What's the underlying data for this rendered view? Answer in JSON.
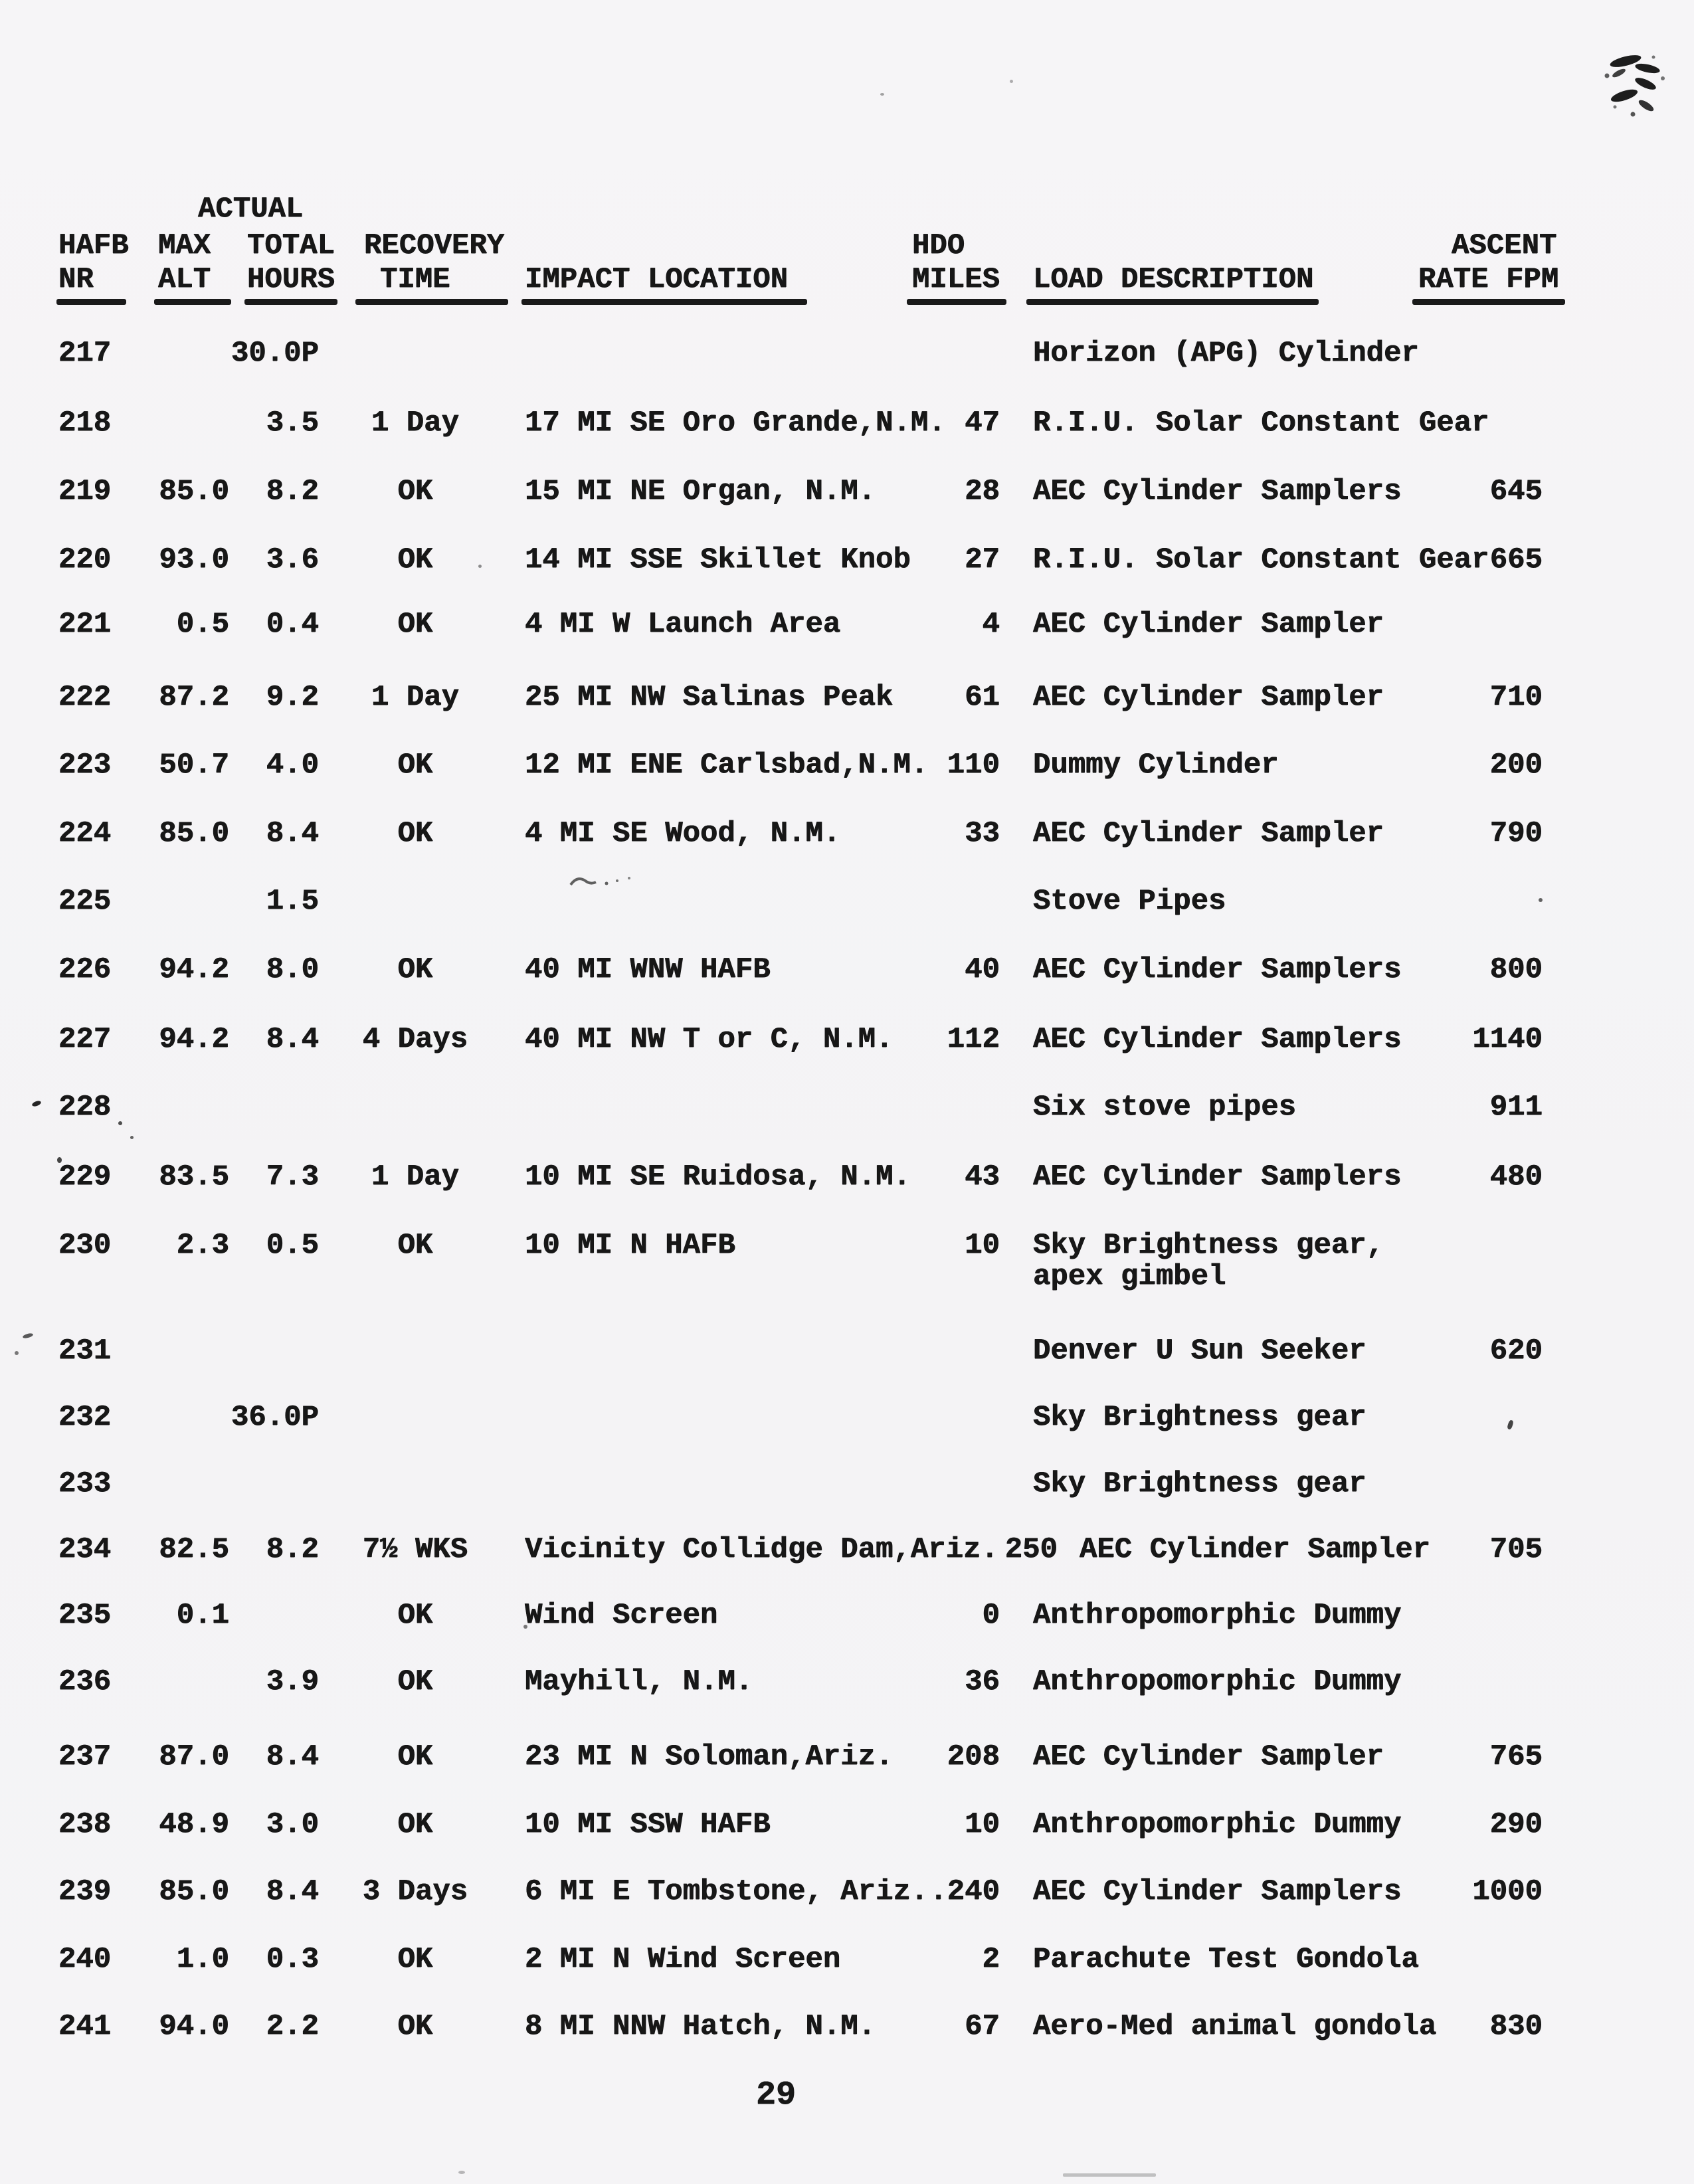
{
  "page": {
    "number": "29"
  },
  "header": {
    "actual_label": "ACTUAL",
    "columns": {
      "nr": {
        "line1": "HAFB",
        "line2": "NR"
      },
      "alt": {
        "line1": "MAX",
        "line2": "ALT"
      },
      "hours": {
        "line1": "TOTAL",
        "line2": "HOURS"
      },
      "recovery": {
        "line1": "RECOVERY",
        "line2": "TIME"
      },
      "location": {
        "line2": "IMPACT LOCATION"
      },
      "miles": {
        "line1": "HDO",
        "line2": "MILES"
      },
      "load": {
        "line2": "LOAD DESCRIPTION"
      },
      "ascent": {
        "line1": "ASCENT",
        "line2": "RATE FPM"
      }
    }
  },
  "rows": [
    {
      "nr": "217",
      "alt": "",
      "hours": "30.0P",
      "recovery": "",
      "location": "",
      "miles": "",
      "load": "Horizon (APG) Cylinder",
      "ascent": ""
    },
    {
      "nr": "218",
      "alt": "",
      "hours": "3.5",
      "recovery": "1 Day",
      "location": "17 MI SE Oro Grande,N.M.",
      "miles": "47",
      "load": "R.I.U. Solar Constant Gear",
      "ascent": ""
    },
    {
      "nr": "219",
      "alt": "85.0",
      "hours": "8.2",
      "recovery": "OK",
      "location": "15 MI NE Organ, N.M.",
      "miles": "28",
      "load": "AEC Cylinder Samplers",
      "ascent": "645"
    },
    {
      "nr": "220",
      "alt": "93.0",
      "hours": "3.6",
      "recovery": "OK",
      "location": "14 MI SSE Skillet Knob",
      "miles": "27",
      "load": "R.I.U. Solar Constant Gear",
      "ascent": "665"
    },
    {
      "nr": "221",
      "alt": "0.5",
      "hours": "0.4",
      "recovery": "OK",
      "location": "4 MI W Launch Area",
      "miles": "4",
      "load": "AEC Cylinder Sampler",
      "ascent": ""
    },
    {
      "nr": "222",
      "alt": "87.2",
      "hours": "9.2",
      "recovery": "1 Day",
      "location": "25 MI NW Salinas Peak",
      "miles": "61",
      "load": "AEC Cylinder Sampler",
      "ascent": "710"
    },
    {
      "nr": "223",
      "alt": "50.7",
      "hours": "4.0",
      "recovery": "OK",
      "location": "12 MI ENE Carlsbad,N.M.",
      "miles": "110",
      "load": "Dummy Cylinder",
      "ascent": "200"
    },
    {
      "nr": "224",
      "alt": "85.0",
      "hours": "8.4",
      "recovery": "OK",
      "location": "4 MI SE Wood, N.M.",
      "miles": "33",
      "load": "AEC Cylinder Sampler",
      "ascent": "790"
    },
    {
      "nr": "225",
      "alt": "",
      "hours": "1.5",
      "recovery": "",
      "location": "",
      "miles": "",
      "load": "Stove Pipes",
      "ascent": ""
    },
    {
      "nr": "226",
      "alt": "94.2",
      "hours": "8.0",
      "recovery": "OK",
      "location": "40 MI WNW HAFB",
      "miles": "40",
      "load": "AEC Cylinder Samplers",
      "ascent": "800"
    },
    {
      "nr": "227",
      "alt": "94.2",
      "hours": "8.4",
      "recovery": "4 Days",
      "location": "40 MI NW T or C, N.M.",
      "miles": "112",
      "load": "AEC Cylinder Samplers",
      "ascent": "1140"
    },
    {
      "nr": "228",
      "alt": "",
      "hours": "",
      "recovery": "",
      "location": "",
      "miles": "",
      "load": "Six stove pipes",
      "ascent": "911"
    },
    {
      "nr": "229",
      "alt": "83.5",
      "hours": "7.3",
      "recovery": "1 Day",
      "location": "10 MI SE Ruidosa, N.M.",
      "miles": "43",
      "load": "AEC Cylinder Samplers",
      "ascent": "480"
    },
    {
      "nr": "230",
      "alt": "2.3",
      "hours": "0.5",
      "recovery": "OK",
      "location": "10 MI N HAFB",
      "miles": "10",
      "load": "Sky Brightness gear,\napex gimbel",
      "ascent": ""
    },
    {
      "nr": "231",
      "alt": "",
      "hours": "",
      "recovery": "",
      "location": "",
      "miles": "",
      "load": "Denver U Sun Seeker",
      "ascent": "620"
    },
    {
      "nr": "232",
      "alt": "",
      "hours": "36.0P",
      "recovery": "",
      "location": "",
      "miles": "",
      "load": "Sky Brightness gear",
      "ascent": ""
    },
    {
      "nr": "233",
      "alt": "",
      "hours": "",
      "recovery": "",
      "location": "",
      "miles": "",
      "load": "Sky Brightness gear",
      "ascent": ""
    },
    {
      "nr": "234",
      "alt": "82.5",
      "hours": "8.2",
      "recovery": "7½ WKS",
      "location": "Vicinity Collidge Dam,Ariz.",
      "miles": "250",
      "load": "AEC Cylinder Sampler",
      "ascent": "705"
    },
    {
      "nr": "235",
      "alt": "0.1",
      "hours": "",
      "recovery": "OK",
      "location": "Wind Screen",
      "miles": "0",
      "load": "Anthropomorphic Dummy",
      "ascent": ""
    },
    {
      "nr": "236",
      "alt": "",
      "hours": "3.9",
      "recovery": "OK",
      "location": "Mayhill, N.M.",
      "miles": "36",
      "load": "Anthropomorphic Dummy",
      "ascent": ""
    },
    {
      "nr": "237",
      "alt": "87.0",
      "hours": "8.4",
      "recovery": "OK",
      "location": "23 MI N Soloman,Ariz.",
      "miles": "208",
      "load": "AEC Cylinder Sampler",
      "ascent": "765"
    },
    {
      "nr": "238",
      "alt": "48.9",
      "hours": "3.0",
      "recovery": "OK",
      "location": "10 MI SSW HAFB",
      "miles": "10",
      "load": "Anthropomorphic Dummy",
      "ascent": "290"
    },
    {
      "nr": "239",
      "alt": "85.0",
      "hours": "8.4",
      "recovery": "3 Days",
      "location": "6 MI E Tombstone, Ariz.",
      "miles": ".240",
      "load": "AEC Cylinder Samplers",
      "ascent": "1000"
    },
    {
      "nr": "240",
      "alt": "1.0",
      "hours": "0.3",
      "recovery": "OK",
      "location": "2 MI N Wind Screen",
      "miles": "2",
      "load": "Parachute Test Gondola",
      "ascent": ""
    },
    {
      "nr": "241",
      "alt": "94.0",
      "hours": "2.2",
      "recovery": "OK",
      "location": "8 MI NNW Hatch, N.M.",
      "miles": "67",
      "load": "Aero-Med animal gondola",
      "ascent": "830"
    }
  ]
}
